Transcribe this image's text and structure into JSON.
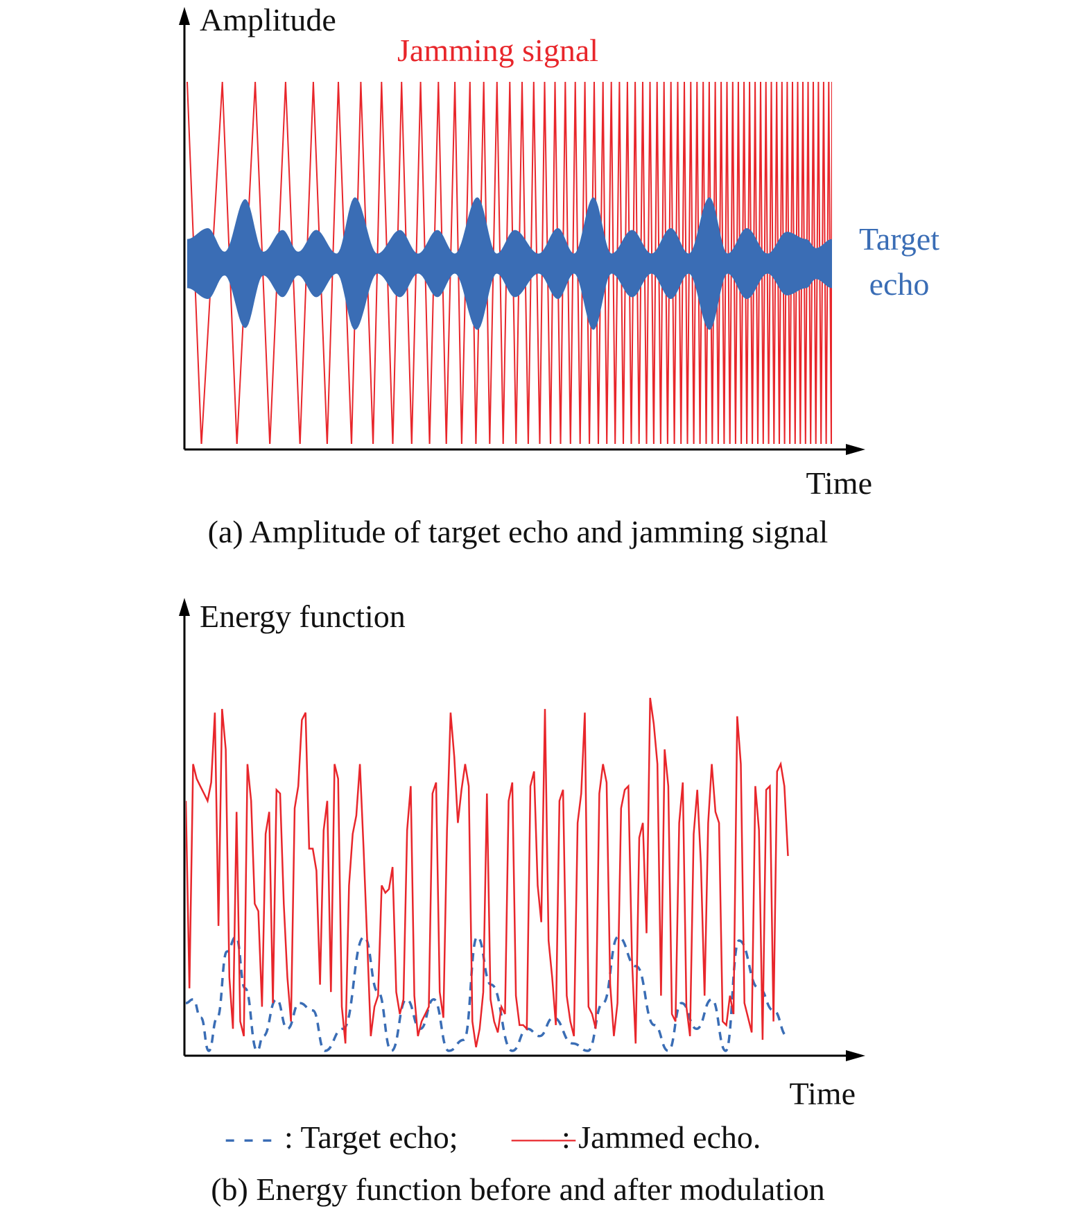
{
  "figure_a": {
    "ylabel": "Amplitude",
    "xlabel": "Time",
    "jamming_label": "Jamming signal",
    "target_label_1": "Target",
    "target_label_2": "echo",
    "caption": "(a) Amplitude of target echo and jamming signal"
  },
  "figure_b": {
    "ylabel": "Energy function",
    "xlabel": "Time",
    "legend_target_marker": "- - -",
    "legend_target": ": Target echo;",
    "legend_jammed_marker": "——",
    "legend_jammed": ": Jammed echo.",
    "caption": "(b) Energy function before and after modulation"
  },
  "colors": {
    "jamming": "#e8262b",
    "target": "#3a6db5",
    "axis": "#000000",
    "text": "#111111"
  },
  "chart_data": [
    {
      "type": "line",
      "title": "(a) Amplitude of target echo and jamming signal",
      "xlabel": "Time",
      "ylabel": "Amplitude",
      "xlim": [
        0,
        1
      ],
      "ylim": [
        -1,
        1
      ],
      "grid": false,
      "series": [
        {
          "name": "Jamming signal",
          "color": "#e8262b",
          "kind": "square-wave oscillation, full scale",
          "amplitude": 1.0
        },
        {
          "name": "Target echo",
          "color": "#3a6db5",
          "kind": "modulated envelope band",
          "envelope_x": [
            0.0,
            0.032,
            0.058,
            0.09,
            0.118,
            0.148,
            0.172,
            0.2,
            0.232,
            0.26,
            0.295,
            0.33,
            0.358,
            0.388,
            0.415,
            0.45,
            0.48,
            0.508,
            0.545,
            0.575,
            0.6,
            0.63,
            0.658,
            0.69,
            0.72,
            0.75,
            0.778,
            0.81,
            0.838,
            0.868,
            0.9,
            0.93,
            0.96,
            0.975,
            1.0
          ],
          "envelope_amp": [
            0.1,
            0.16,
            0.03,
            0.32,
            0.03,
            0.15,
            0.03,
            0.15,
            0.02,
            0.33,
            0.02,
            0.15,
            0.02,
            0.15,
            0.02,
            0.33,
            0.02,
            0.15,
            0.02,
            0.16,
            0.02,
            0.33,
            0.02,
            0.15,
            0.02,
            0.16,
            0.02,
            0.33,
            0.02,
            0.16,
            0.02,
            0.14,
            0.1,
            0.05,
            0.1
          ]
        }
      ]
    },
    {
      "type": "line",
      "title": "(b) Energy function before and after modulation",
      "xlabel": "Time",
      "ylabel": "Energy function",
      "xlim": [
        0,
        1
      ],
      "ylim": [
        0,
        1
      ],
      "grid": false,
      "series": [
        {
          "name": "Target echo",
          "color": "#3a6db5",
          "style": "dashed",
          "x": [
            0.0,
            0.012,
            0.025,
            0.038,
            0.052,
            0.068,
            0.083,
            0.098,
            0.118,
            0.128,
            0.15,
            0.168,
            0.188,
            0.21,
            0.23,
            0.26,
            0.295,
            0.318,
            0.34,
            0.365,
            0.388,
            0.41,
            0.435,
            0.46,
            0.482,
            0.505,
            0.54,
            0.565,
            0.585,
            0.608,
            0.64,
            0.665,
            0.69,
            0.715,
            0.745,
            0.775,
            0.798,
            0.82,
            0.845,
            0.87,
            0.893,
            0.915,
            0.948,
            0.972,
            0.995
          ],
          "y": [
            0.13,
            0.14,
            0.09,
            0.0,
            0.09,
            0.27,
            0.31,
            0.17,
            0.0,
            0.04,
            0.14,
            0.06,
            0.13,
            0.11,
            0.0,
            0.06,
            0.31,
            0.16,
            0.0,
            0.14,
            0.06,
            0.14,
            0.0,
            0.03,
            0.31,
            0.18,
            0.0,
            0.06,
            0.04,
            0.09,
            0.02,
            0.0,
            0.13,
            0.31,
            0.23,
            0.07,
            0.0,
            0.13,
            0.06,
            0.14,
            0.0,
            0.3,
            0.17,
            0.11,
            0.04
          ]
        },
        {
          "name": "Jammed echo",
          "color": "#e8262b",
          "style": "solid",
          "x": [
            0.0,
            0.006,
            0.012,
            0.018,
            0.024,
            0.03,
            0.036,
            0.042,
            0.048,
            0.054,
            0.06,
            0.066,
            0.072,
            0.078,
            0.084,
            0.09,
            0.096,
            0.102,
            0.108,
            0.114,
            0.12,
            0.126,
            0.132,
            0.138,
            0.144,
            0.15,
            0.156,
            0.162,
            0.168,
            0.174,
            0.18,
            0.186,
            0.192,
            0.198,
            0.204,
            0.21,
            0.216,
            0.222,
            0.228,
            0.234,
            0.24,
            0.246,
            0.252,
            0.258,
            0.264,
            0.27,
            0.276,
            0.282,
            0.288,
            0.294,
            0.3,
            0.306,
            0.312,
            0.318,
            0.324,
            0.33,
            0.336,
            0.342,
            0.348,
            0.354,
            0.36,
            0.366,
            0.372,
            0.378,
            0.384,
            0.39,
            0.396,
            0.402,
            0.408,
            0.414,
            0.42,
            0.426,
            0.432,
            0.438,
            0.444,
            0.45,
            0.456,
            0.462,
            0.468,
            0.474,
            0.48,
            0.486,
            0.492,
            0.498,
            0.504,
            0.51,
            0.516,
            0.522,
            0.528,
            0.534,
            0.54,
            0.546,
            0.552,
            0.558,
            0.564,
            0.57,
            0.576,
            0.582,
            0.588,
            0.594,
            0.6,
            0.606,
            0.612,
            0.618,
            0.624,
            0.63,
            0.636,
            0.642,
            0.648,
            0.654,
            0.66,
            0.666,
            0.672,
            0.678,
            0.684,
            0.69,
            0.696,
            0.702,
            0.708,
            0.714,
            0.72,
            0.726,
            0.732,
            0.738,
            0.744,
            0.75,
            0.756,
            0.762,
            0.768,
            0.774,
            0.78,
            0.786,
            0.792,
            0.798,
            0.804,
            0.81,
            0.816,
            0.822,
            0.828,
            0.834,
            0.84,
            0.846,
            0.852,
            0.858,
            0.864,
            0.87,
            0.876,
            0.882,
            0.888,
            0.894,
            0.9,
            0.906,
            0.912,
            0.918,
            0.924,
            0.93,
            0.936,
            0.942,
            0.948,
            0.954,
            0.96,
            0.966,
            0.972,
            0.978,
            0.984,
            0.99,
            0.996
          ],
          "y": [
            0.68,
            0.17,
            0.78,
            0.74,
            0.72,
            0.7,
            0.68,
            0.73,
            0.92,
            0.34,
            0.93,
            0.82,
            0.2,
            0.06,
            0.65,
            0.08,
            0.04,
            0.78,
            0.68,
            0.4,
            0.38,
            0.12,
            0.59,
            0.65,
            0.13,
            0.71,
            0.7,
            0.4,
            0.2,
            0.08,
            0.66,
            0.72,
            0.9,
            0.92,
            0.55,
            0.55,
            0.49,
            0.18,
            0.6,
            0.68,
            0.16,
            0.78,
            0.74,
            0.12,
            0.02,
            0.45,
            0.59,
            0.64,
            0.78,
            0.55,
            0.3,
            0.04,
            0.12,
            0.15,
            0.45,
            0.43,
            0.44,
            0.5,
            0.16,
            0.1,
            0.14,
            0.6,
            0.72,
            0.15,
            0.04,
            0.08,
            0.1,
            0.12,
            0.7,
            0.73,
            0.16,
            0.09,
            0.6,
            0.92,
            0.8,
            0.62,
            0.71,
            0.78,
            0.72,
            0.08,
            0.01,
            0.06,
            0.16,
            0.7,
            0.14,
            0.08,
            0.05,
            0.12,
            0.1,
            0.68,
            0.73,
            0.15,
            0.07,
            0.07,
            0.06,
            0.72,
            0.76,
            0.45,
            0.35,
            0.93,
            0.3,
            0.2,
            0.07,
            0.68,
            0.71,
            0.15,
            0.08,
            0.04,
            0.62,
            0.7,
            0.92,
            0.12,
            0.1,
            0.06,
            0.7,
            0.78,
            0.73,
            0.18,
            0.04,
            0.13,
            0.66,
            0.71,
            0.72,
            0.25,
            0.02,
            0.58,
            0.62,
            0.32,
            0.96,
            0.89,
            0.78,
            0.15,
            0.82,
            0.72,
            0.1,
            0.08,
            0.62,
            0.73,
            0.12,
            0.04,
            0.59,
            0.71,
            0.51,
            0.15,
            0.62,
            0.78,
            0.65,
            0.62,
            0.08,
            0.07,
            0.15,
            0.1,
            0.91,
            0.78,
            0.13,
            0.09,
            0.05,
            0.72,
            0.6,
            0.03,
            0.71,
            0.72,
            0.08,
            0.76,
            0.78,
            0.72,
            0.53
          ]
        }
      ]
    }
  ]
}
